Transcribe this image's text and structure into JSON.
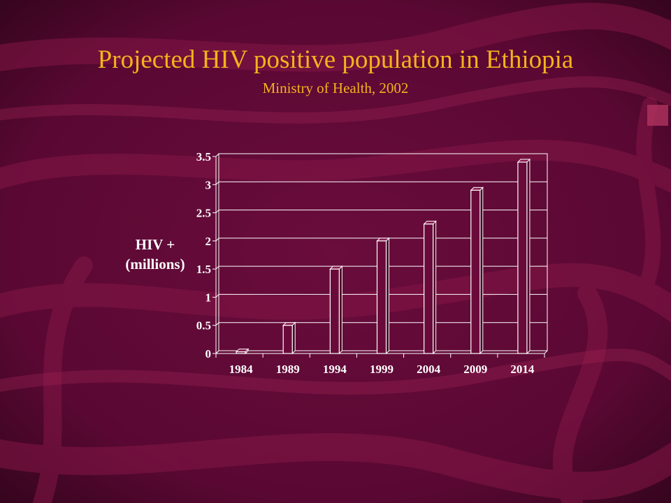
{
  "title": "Projected HIV positive population in Ethiopia",
  "subtitle": "Ministry of Health, 2002",
  "colors": {
    "background": "#5e0a35",
    "title": "#f5b21c",
    "axis_text": "#ffffff",
    "bar_face": "#6a0a3a",
    "bar_outline": "#ffffff"
  },
  "chart_data": {
    "type": "bar",
    "categories": [
      "1984",
      "1989",
      "1994",
      "1999",
      "2004",
      "2009",
      "2014"
    ],
    "values": [
      0.03,
      0.5,
      1.5,
      2.0,
      2.3,
      2.9,
      3.4
    ],
    "ylabel_lines": [
      "HIV +",
      "(millions)"
    ],
    "yticks": [
      "0",
      "0.5",
      "1",
      "1.5",
      "2",
      "2.5",
      "3",
      "3.5"
    ],
    "ylim": [
      0,
      3.5
    ],
    "grid": true,
    "legend": "none",
    "style": "3d"
  }
}
